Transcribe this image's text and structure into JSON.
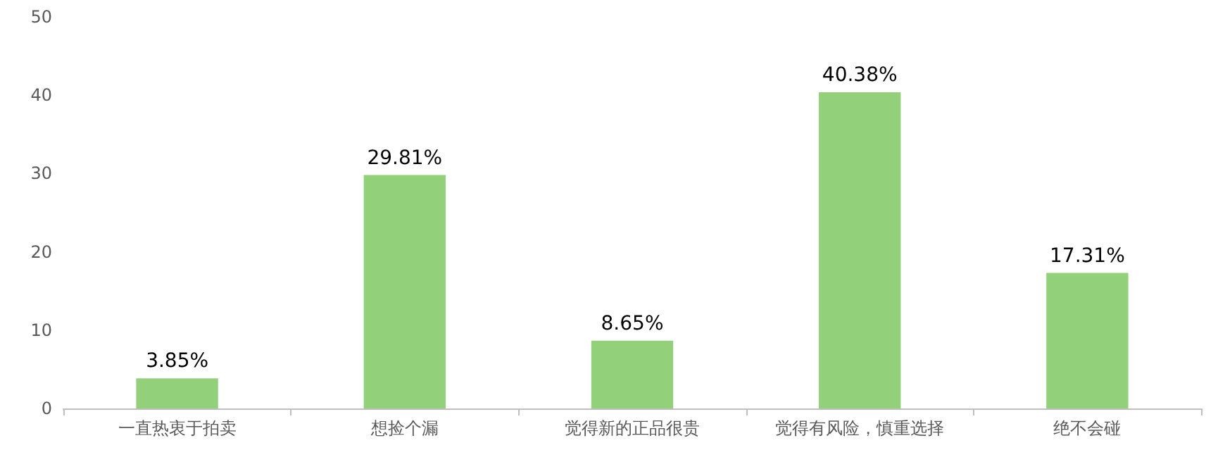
{
  "chart_data": {
    "type": "bar",
    "categories": [
      "一直热衷于拍卖",
      "想捡个漏",
      "觉得新的正品很贵",
      "觉得有风险，慎重选择",
      "绝不会碰"
    ],
    "values": [
      3.85,
      29.81,
      8.65,
      40.38,
      17.31
    ],
    "value_labels": [
      "3.85%",
      "29.81%",
      "8.65%",
      "40.38%",
      "17.31%"
    ],
    "color": "#92d17a",
    "ylim": [
      0,
      50
    ],
    "yticks": [
      0,
      10,
      20,
      30,
      40,
      50
    ],
    "grid": false
  }
}
